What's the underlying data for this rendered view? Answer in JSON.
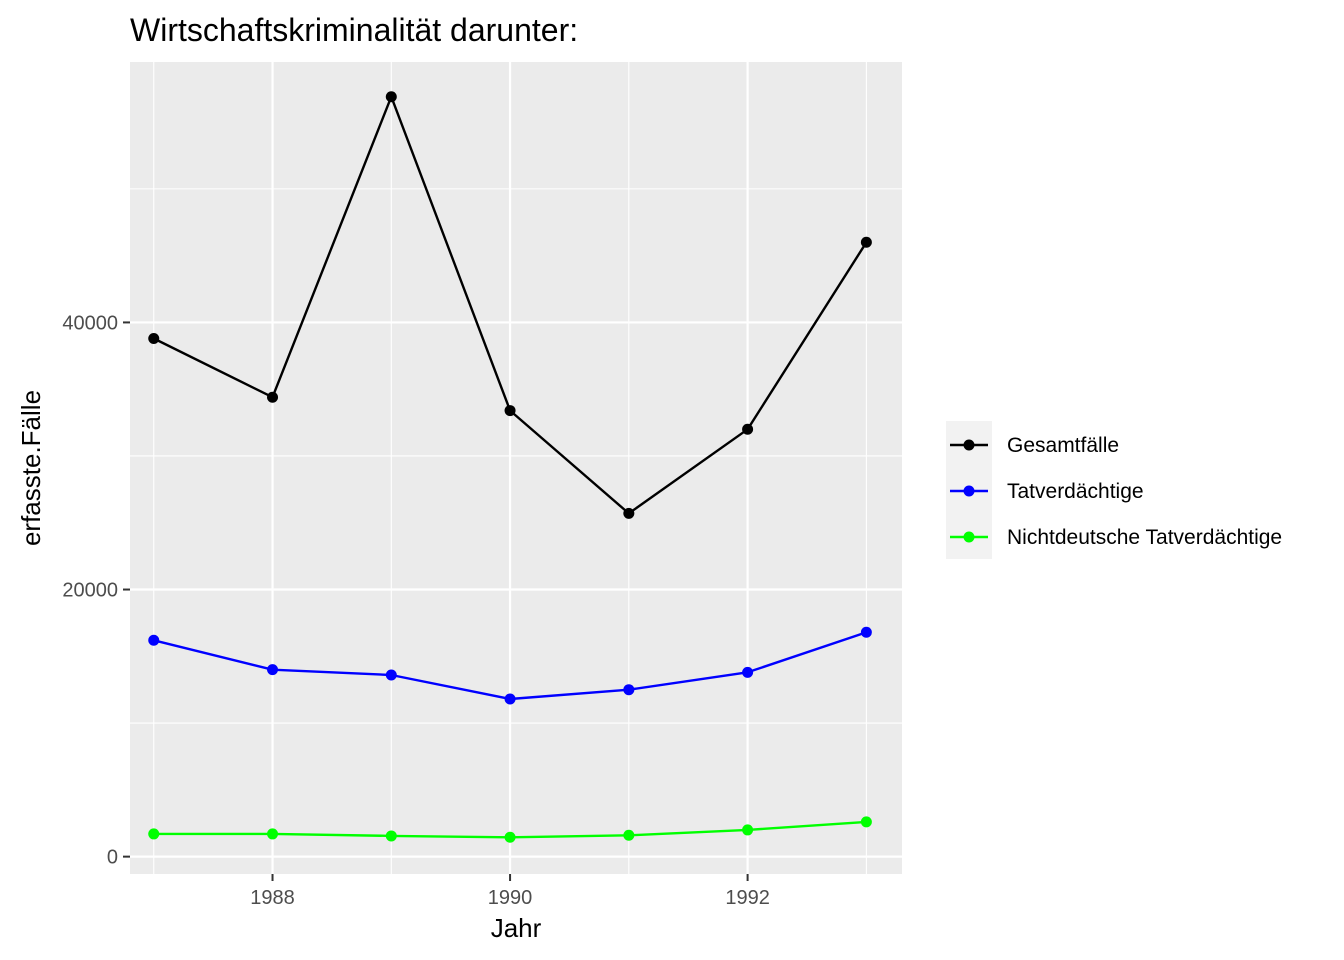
{
  "chart_data": {
    "type": "line",
    "title": "Wirtschaftskriminalität darunter:",
    "xlabel": "Jahr",
    "ylabel": "erfasste.Fälle",
    "x": [
      1987,
      1988,
      1989,
      1990,
      1991,
      1992,
      1993
    ],
    "xlim": [
      1986.8,
      1993.3
    ],
    "ylim": [
      -1300,
      59500
    ],
    "x_ticks": [
      1988,
      1990,
      1992
    ],
    "x_tick_labels": [
      "1988",
      "1990",
      "1992"
    ],
    "y_ticks": [
      0,
      20000,
      40000
    ],
    "y_tick_labels": [
      "0",
      "20000",
      "40000"
    ],
    "grid": true,
    "panel_background": "#ebebeb",
    "legend_position": "right",
    "series": [
      {
        "name": "Gesamtfälle",
        "color": "#000000",
        "values": [
          38800,
          34400,
          56900,
          33400,
          25700,
          32000,
          46000
        ]
      },
      {
        "name": "Tatverdächtige",
        "color": "#0000ff",
        "values": [
          16200,
          14000,
          13600,
          11800,
          12500,
          13800,
          16800
        ]
      },
      {
        "name": "Nichtdeutsche Tatverdächtige",
        "color": "#00ff00",
        "values": [
          1700,
          1700,
          1550,
          1450,
          1600,
          2000,
          2600
        ]
      }
    ]
  }
}
